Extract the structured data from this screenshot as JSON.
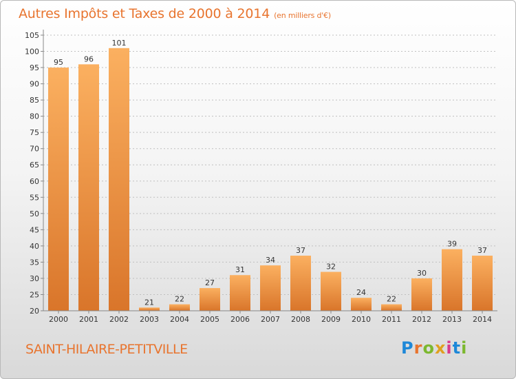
{
  "header": {
    "title": "Autres Impôts et Taxes de 2000 à 2014",
    "subtitle": "(en milliers d'€)"
  },
  "footer": {
    "commune": "SAINT-HILAIRE-PETITVILLE",
    "logo_letters": [
      "P",
      "r",
      "o",
      "x",
      "i",
      "t",
      "i"
    ],
    "logo_colors": [
      "#1e88d8",
      "#e8742e",
      "#7cb82f",
      "#e0a020",
      "#d83a8c",
      "#1e88d8",
      "#7cb82f"
    ]
  },
  "colors": {
    "bar_light": "#fbb060",
    "bar_dark": "#d9752a",
    "axis": "#888888",
    "grid": "#bfbfbf",
    "text": "#333333"
  },
  "chart_data": {
    "type": "bar",
    "categories": [
      "2000",
      "2001",
      "2002",
      "2003",
      "2004",
      "2005",
      "2006",
      "2007",
      "2008",
      "2009",
      "2010",
      "2011",
      "2012",
      "2013",
      "2014"
    ],
    "values": [
      95,
      96,
      101,
      21,
      22,
      27,
      31,
      34,
      37,
      32,
      24,
      22,
      30,
      39,
      37
    ],
    "ylim": [
      20,
      105
    ],
    "yticks": [
      20,
      25,
      30,
      35,
      40,
      45,
      50,
      55,
      60,
      65,
      70,
      75,
      80,
      85,
      90,
      95,
      100,
      105
    ],
    "grid": "horizontal-dashed",
    "title": "Autres Impôts et Taxes de 2000 à 2014",
    "xlabel": "",
    "ylabel": ""
  }
}
